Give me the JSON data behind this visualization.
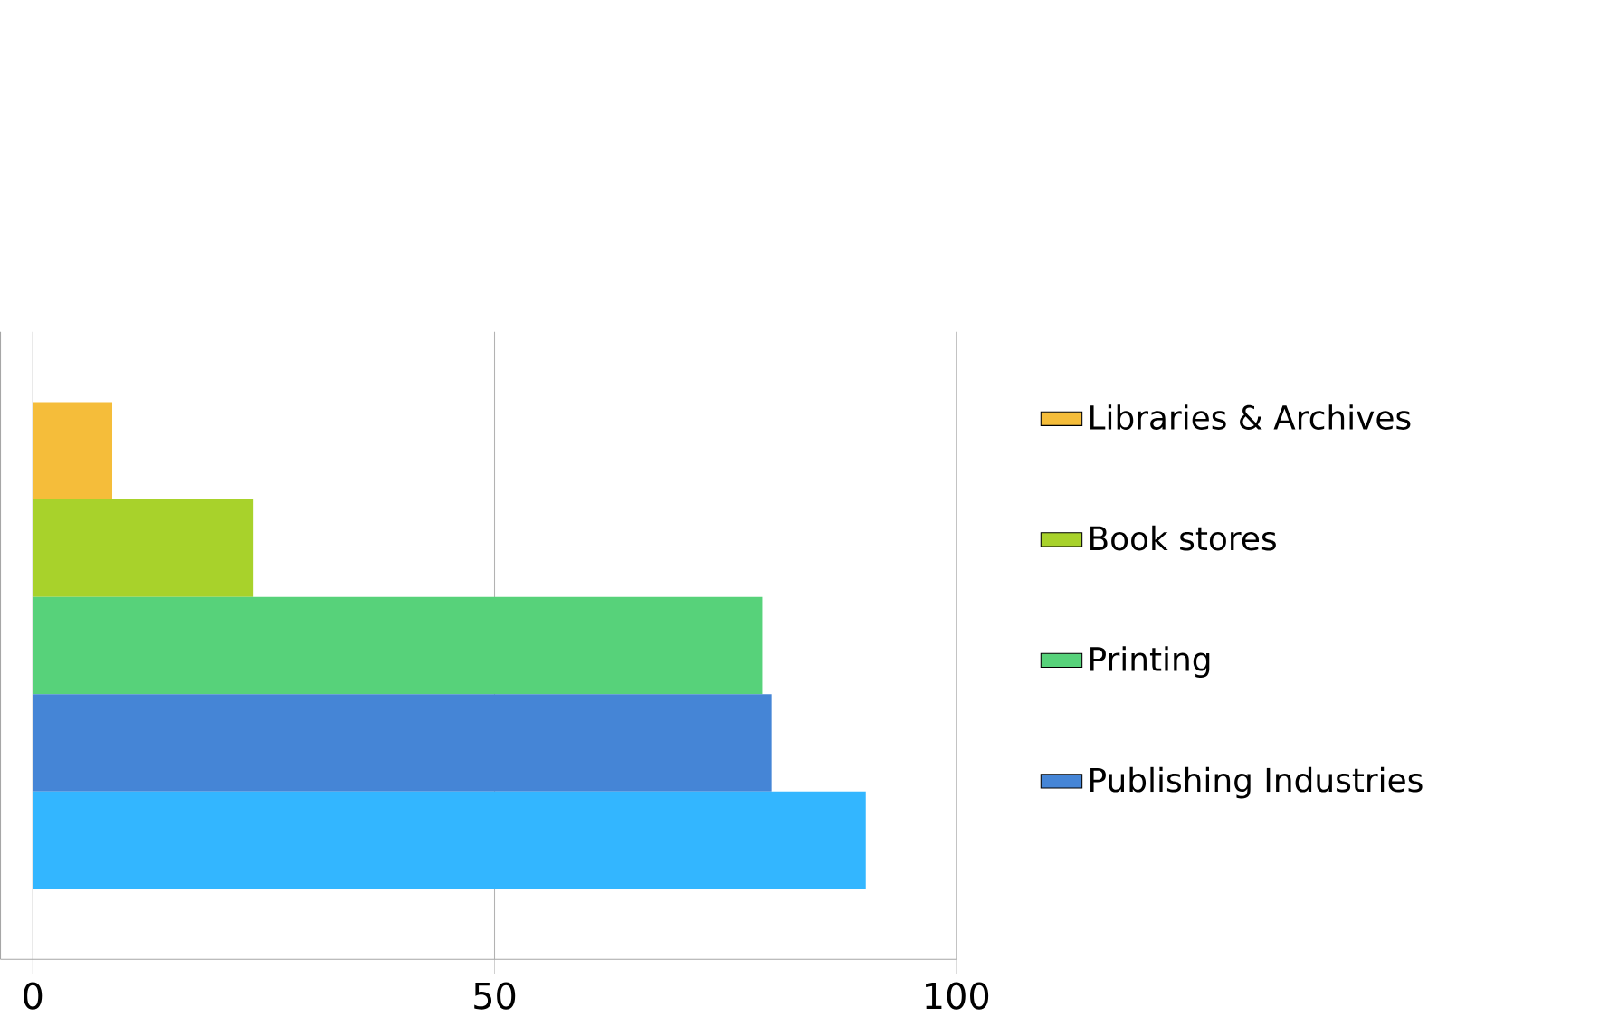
{
  "chart_data": {
    "type": "bar",
    "orientation": "horizontal",
    "categories": [
      null
    ],
    "series": [
      {
        "name": "Libraries & Archives",
        "color": "#f5bd3a",
        "values": [
          8.6
        ]
      },
      {
        "name": "Book stores",
        "color": "#a8d22b",
        "values": [
          23.9
        ]
      },
      {
        "name": "Printing",
        "color": "#57d27a",
        "values": [
          79
        ]
      },
      {
        "name": "Publishing Industries",
        "color": "#4585d6",
        "values": [
          80
        ]
      },
      {
        "color": "#33b6ff",
        "values": [
          90.2
        ]
      }
    ],
    "xlim": [
      -3.5,
      100
    ],
    "xticks": [
      0,
      50,
      100
    ],
    "grid": "x",
    "legend": "right"
  }
}
